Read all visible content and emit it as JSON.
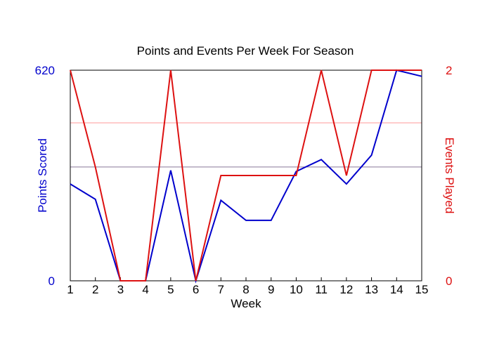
{
  "chart_data": {
    "type": "line",
    "title": "Points and Events Per Week For Season",
    "xlabel": "Week",
    "x": [
      1,
      2,
      3,
      4,
      5,
      6,
      7,
      8,
      9,
      10,
      11,
      12,
      13,
      14,
      15
    ],
    "x_tick_labels": [
      "1",
      "2",
      "3",
      "4",
      "5",
      "6",
      "7",
      "8",
      "9",
      "10",
      "11",
      "12",
      "13",
      "14",
      "15"
    ],
    "xlim": [
      1,
      15
    ],
    "y_left": {
      "label": "Points Scored",
      "ylim": [
        0,
        620
      ],
      "tick_labels": [
        "0",
        "620"
      ],
      "color": "#0000cc"
    },
    "y_right": {
      "label": "Events Played",
      "ylim": [
        0,
        2
      ],
      "tick_labels": [
        "0",
        "2"
      ],
      "color": "#dd1111"
    },
    "series": [
      {
        "name": "Points Scored",
        "axis": "left",
        "color": "#0000cc",
        "values": [
          285,
          240,
          0,
          0,
          325,
          0,
          237,
          178,
          178,
          322,
          357,
          285,
          370,
          620,
          602
        ]
      },
      {
        "name": "Events Played",
        "axis": "right",
        "color": "#dd1111",
        "values": [
          2,
          1.08,
          0,
          0,
          2,
          0,
          1,
          1,
          1,
          1,
          2,
          1,
          2,
          2,
          2
        ]
      }
    ],
    "reference_lines": [
      {
        "axis": "left",
        "value": 335,
        "color": "#887799"
      },
      {
        "axis": "left",
        "value": 465,
        "color": "#ff9999"
      }
    ],
    "grid": false,
    "legend": "none"
  }
}
